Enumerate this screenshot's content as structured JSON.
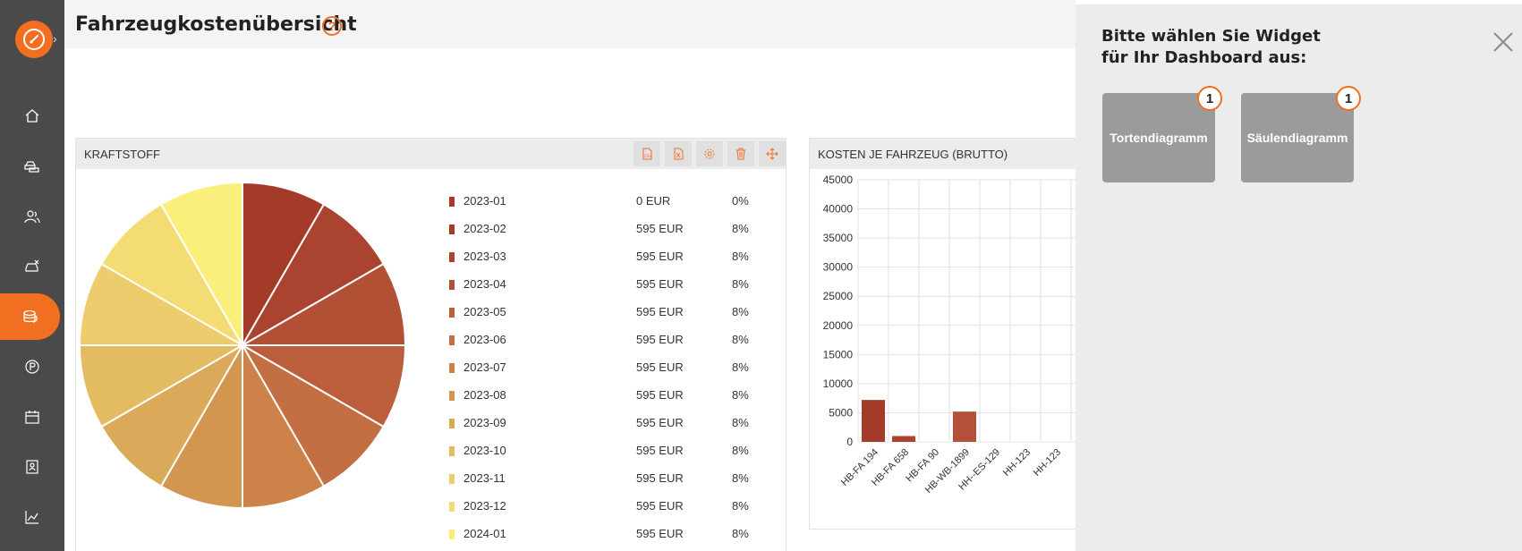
{
  "header": {
    "title": "Fahrzeugkostenübersicht",
    "help_icon": "?"
  },
  "sidebar": {
    "items": [
      {
        "icon": "home-icon"
      },
      {
        "icon": "cars-icon"
      },
      {
        "icon": "users-icon"
      },
      {
        "icon": "car-damage-icon"
      },
      {
        "icon": "coins-icon",
        "active": true
      },
      {
        "icon": "parking-icon"
      },
      {
        "icon": "calendar-icon"
      },
      {
        "icon": "contacts-icon"
      },
      {
        "icon": "chart-line-icon"
      }
    ]
  },
  "widgets": [
    {
      "title": "KRAFTSTOFF",
      "tools": [
        "csv-icon",
        "excel-icon",
        "settings-icon",
        "trash-icon",
        "move-icon"
      ],
      "legend": [
        {
          "label": "2023-01",
          "value": "0 EUR",
          "pct": "0%"
        },
        {
          "label": "2023-02",
          "value": "595 EUR",
          "pct": "8%"
        },
        {
          "label": "2023-03",
          "value": "595 EUR",
          "pct": "8%"
        },
        {
          "label": "2023-04",
          "value": "595 EUR",
          "pct": "8%"
        },
        {
          "label": "2023-05",
          "value": "595 EUR",
          "pct": "8%"
        },
        {
          "label": "2023-06",
          "value": "595 EUR",
          "pct": "8%"
        },
        {
          "label": "2023-07",
          "value": "595 EUR",
          "pct": "8%"
        },
        {
          "label": "2023-08",
          "value": "595 EUR",
          "pct": "8%"
        },
        {
          "label": "2023-09",
          "value": "595 EUR",
          "pct": "8%"
        },
        {
          "label": "2023-10",
          "value": "595 EUR",
          "pct": "8%"
        },
        {
          "label": "2023-11",
          "value": "595 EUR",
          "pct": "8%"
        },
        {
          "label": "2023-12",
          "value": "595 EUR",
          "pct": "8%"
        },
        {
          "label": "2024-01",
          "value": "595 EUR",
          "pct": "8%"
        }
      ]
    },
    {
      "title": "KOSTEN JE FAHRZEUG (BRUTTO)"
    }
  ],
  "chart_data": [
    {
      "type": "pie",
      "categories": [
        "2023-01",
        "2023-02",
        "2023-03",
        "2023-04",
        "2023-05",
        "2023-06",
        "2023-07",
        "2023-08",
        "2023-09",
        "2023-10",
        "2023-11",
        "2023-12",
        "2024-01"
      ],
      "values": [
        0,
        595,
        595,
        595,
        595,
        595,
        595,
        595,
        595,
        595,
        595,
        595,
        595
      ],
      "colors": [
        "#a43a28",
        "#a43a28",
        "#aa4330",
        "#b25036",
        "#bc5d3b",
        "#c46e43",
        "#cd8249",
        "#d29650",
        "#daa95a",
        "#e3bc62",
        "#eccc6c",
        "#f3dc74",
        "#fbef7c"
      ]
    },
    {
      "type": "bar",
      "categories": [
        "HB-FA 194",
        "HB-FA 658",
        "HB-FA 90",
        "HB-WB-1899",
        "HH--ES-129",
        "HH-123",
        "HH-123"
      ],
      "values": [
        7200,
        1000,
        0,
        5200,
        0,
        0,
        0
      ],
      "colors": [
        "#a43a28",
        "#aa4330",
        "#b25036",
        "#b4503a",
        "#bc5d3b",
        "#c46e43",
        "#cd8249"
      ],
      "yticks": [
        0,
        5000,
        10000,
        15000,
        20000,
        25000,
        30000,
        35000,
        40000,
        45000
      ],
      "ylim": [
        0,
        45000
      ],
      "grid": true
    }
  ],
  "panel": {
    "title": "Bitte wählen Sie Widget für Ihr Dashboard aus:",
    "options": [
      {
        "label": "Tortendiagramm",
        "badge": "1"
      },
      {
        "label": "Säulendiagramm",
        "badge": "1"
      }
    ]
  }
}
